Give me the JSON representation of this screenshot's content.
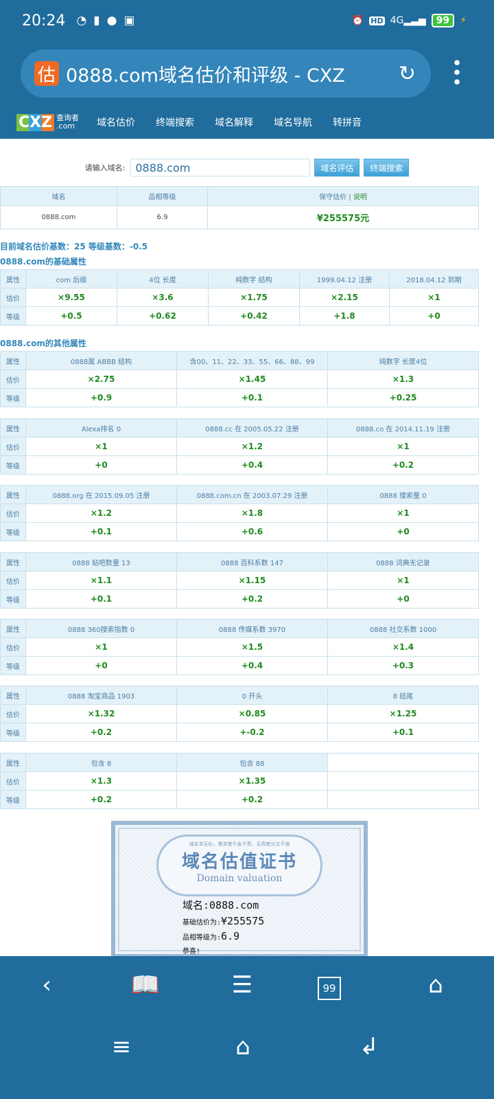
{
  "status": {
    "time": "20:24",
    "battery": "99",
    "network": "4G",
    "hd": "HD"
  },
  "browser": {
    "favicon": "估",
    "title": "0888.com域名估价和评级 - CXZ"
  },
  "site": {
    "logo": "CXZ",
    "logo_sub1": "查询者",
    "logo_sub2": ".com",
    "nav": [
      "域名估价",
      "终端搜索",
      "域名解释",
      "域名导航",
      "转拼音"
    ]
  },
  "search": {
    "label": "请输入域名:",
    "value": "0888.com",
    "btn_eval": "域名评估",
    "btn_search": "终端搜索"
  },
  "summary": {
    "headers": [
      "域名",
      "品相等级",
      "保守估价 | "
    ],
    "help_link": "说明",
    "domain": "0888.com",
    "grade": "6.9",
    "price": "¥255575元"
  },
  "base_info": "目前域名估价基数：25 等级基数：-0.5",
  "basic_title": "0888.com的基础属性",
  "basic": {
    "rows": [
      [
        "属性",
        "com 后缀",
        "4位 长度",
        "纯数字 结构",
        "1999.04.12 注册",
        "2018.04.12 到期"
      ],
      [
        "估价",
        "×9.55",
        "×3.6",
        "×1.75",
        "×2.15",
        "×1"
      ],
      [
        "等级",
        "+0.5",
        "+0.62",
        "+0.42",
        "+1.8",
        "+0"
      ]
    ]
  },
  "other_title": "0888.com的其他属性",
  "other": [
    {
      "rows": [
        [
          "属性",
          "0888属 ABBB 结构",
          "含00、11、22、33、55、66、88、99",
          "纯数字 长度4位"
        ],
        [
          "估价",
          "×2.75",
          "×1.45",
          "×1.3"
        ],
        [
          "等级",
          "+0.9",
          "+0.1",
          "+0.25"
        ]
      ]
    },
    {
      "rows": [
        [
          "属性",
          "Alexa排名 0",
          "0888.cc 在 2005.05.22 注册",
          "0888.co 在 2014.11.19 注册"
        ],
        [
          "估价",
          "×1",
          "×1.2",
          "×1"
        ],
        [
          "等级",
          "+0",
          "+0.4",
          "+0.2"
        ]
      ]
    },
    {
      "rows": [
        [
          "属性",
          "0888.org 在 2015.09.05 注册",
          "0888.com.cn 在 2003.07.29 注册",
          "0888 搜索量 0"
        ],
        [
          "估价",
          "×1.2",
          "×1.8",
          "×1"
        ],
        [
          "等级",
          "+0.1",
          "+0.6",
          "+0"
        ]
      ]
    },
    {
      "rows": [
        [
          "属性",
          "0888 贴吧数量 13",
          "0888 百科系数 147",
          "0888 词典无记录"
        ],
        [
          "估价",
          "×1.1",
          "×1.15",
          "×1"
        ],
        [
          "等级",
          "+0.1",
          "+0.2",
          "+0"
        ]
      ]
    },
    {
      "rows": [
        [
          "属性",
          "0888 360搜索指数 0",
          "0888 传媒系数 3970",
          "0888 社交系数 1000"
        ],
        [
          "估价",
          "×1",
          "×1.5",
          "×1.4"
        ],
        [
          "等级",
          "+0",
          "+0.4",
          "+0.3"
        ]
      ]
    },
    {
      "rows": [
        [
          "属性",
          "0888 淘宝商品 1903",
          "0 开头",
          "8 结尾"
        ],
        [
          "估价",
          "×1.32",
          "×0.85",
          "×1.25"
        ],
        [
          "等级",
          "+0.2",
          "+-0.2",
          "+0.1"
        ]
      ]
    },
    {
      "rows": [
        [
          "属性",
          "包含 8",
          "包含 88",
          ""
        ],
        [
          "估价",
          "×1.3",
          "×1.35",
          ""
        ],
        [
          "等级",
          "+0.2",
          "+0.2",
          ""
        ]
      ]
    }
  ],
  "certificate": {
    "motto": "域名本无价，需求者千金不贵，无用者分文不值",
    "title": "域名估值证书",
    "subtitle": "Domain valuation",
    "domain_line": "域名:0888.com",
    "price_label": "基础估价为:",
    "price": "¥255575",
    "grade_label": "品相等级为:",
    "grade": "6.9",
    "congrats": "恭喜!"
  },
  "toolbar": {
    "tabs_count": "99"
  },
  "colors": {
    "brand": "#1f6c9d",
    "value_green": "#1e8a1e",
    "header_bg": "#e3f1f9"
  }
}
